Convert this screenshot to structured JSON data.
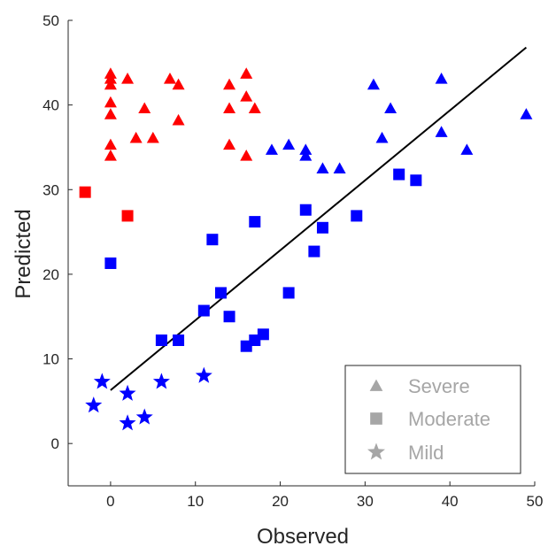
{
  "chart_data": {
    "type": "scatter",
    "xlabel": "Observed",
    "ylabel": "Predicted",
    "xlim": [
      -5,
      50
    ],
    "ylim": [
      -5,
      50
    ],
    "x_ticks": [
      "0",
      "10",
      "20",
      "30",
      "40",
      "50"
    ],
    "y_ticks": [
      "0",
      "10",
      "20",
      "30",
      "40",
      "50"
    ],
    "grid": false,
    "legend_position": "bottom-right",
    "fit_line": {
      "x": [
        0,
        49
      ],
      "y": [
        6.3,
        46.8
      ],
      "color": "#000000"
    },
    "colors": {
      "red": "#ff0000",
      "blue": "#0000ff",
      "legend_marker": "#a6a6a6"
    },
    "legend": [
      {
        "label": "Severe",
        "marker": "triangle"
      },
      {
        "label": "Moderate",
        "marker": "square"
      },
      {
        "label": "Mild",
        "marker": "star"
      }
    ],
    "series": [
      {
        "marker": "triangle",
        "color": "#ff0000",
        "x": [
          0,
          0,
          0,
          0,
          0,
          0,
          0,
          2,
          3,
          4,
          5,
          7,
          8,
          8,
          14,
          14,
          14,
          16,
          16,
          16,
          17
        ],
        "y": [
          43.7,
          42.4,
          40.3,
          38.9,
          35.3,
          34.0,
          43.1,
          43.1,
          36.1,
          39.6,
          36.1,
          43.1,
          42.4,
          38.2,
          42.4,
          39.6,
          35.3,
          43.7,
          41.0,
          34.0,
          39.6
        ]
      },
      {
        "marker": "square",
        "color": "#ff0000",
        "x": [
          -3,
          2
        ],
        "y": [
          29.7,
          26.9
        ]
      },
      {
        "marker": "triangle",
        "color": "#0000ff",
        "x": [
          19,
          21,
          23,
          23,
          25,
          27,
          31,
          32,
          33,
          39,
          39,
          42,
          49
        ],
        "y": [
          34.7,
          35.3,
          34.7,
          34.0,
          32.5,
          32.5,
          42.4,
          36.1,
          39.6,
          43.1,
          36.8,
          34.7,
          38.9
        ]
      },
      {
        "marker": "square",
        "color": "#0000ff",
        "x": [
          0,
          6,
          8,
          11,
          12,
          13,
          14,
          16,
          17,
          17,
          18,
          21,
          23,
          24,
          25,
          29,
          34,
          36
        ],
        "y": [
          21.3,
          12.2,
          12.2,
          15.7,
          24.1,
          17.8,
          15.0,
          11.5,
          12.2,
          26.2,
          12.9,
          17.8,
          27.6,
          22.7,
          25.5,
          26.9,
          31.8,
          31.1
        ]
      },
      {
        "marker": "star",
        "color": "#0000ff",
        "x": [
          -2,
          -1,
          2,
          2,
          4,
          6,
          11
        ],
        "y": [
          4.5,
          7.3,
          5.9,
          2.4,
          3.1,
          7.3,
          8.0
        ]
      }
    ]
  }
}
